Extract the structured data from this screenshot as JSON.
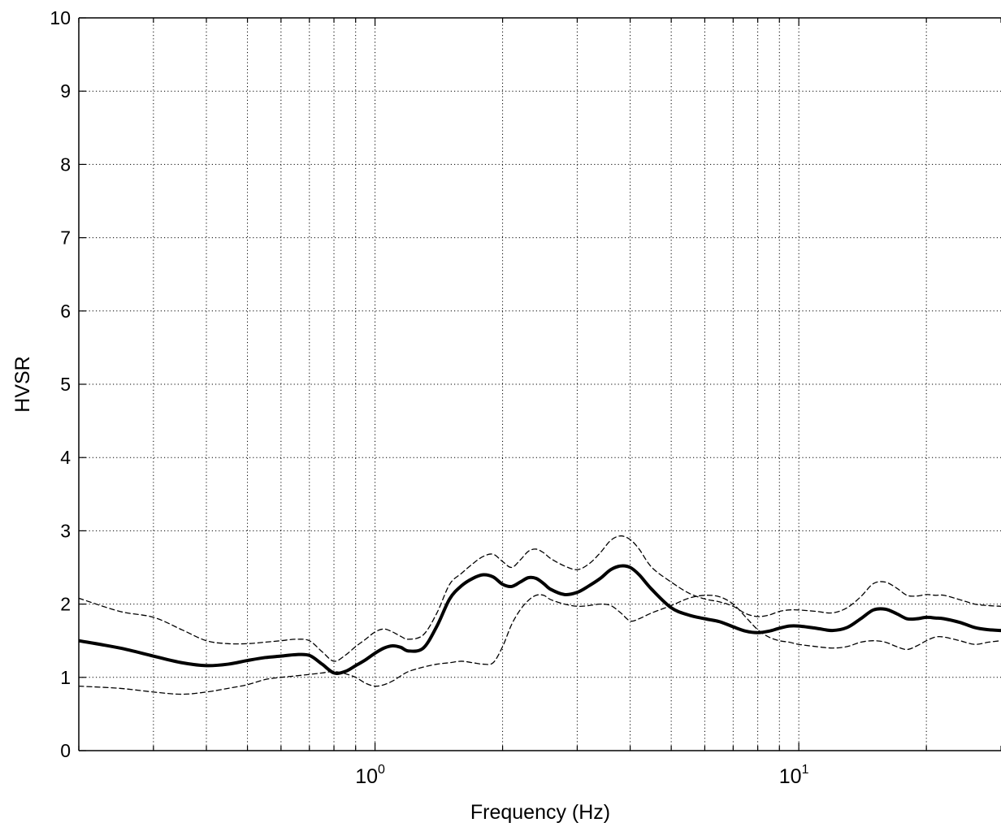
{
  "chart_data": {
    "type": "line",
    "xscale": "log",
    "grid": true,
    "xlim": [
      0.2,
      30
    ],
    "ylim": [
      0,
      10
    ],
    "xlabel": "Frequency (Hz)",
    "ylabel": "HVSR",
    "yticks": [
      "0",
      "1",
      "2",
      "3",
      "4",
      "5",
      "6",
      "7",
      "8",
      "9",
      "10"
    ],
    "xticks": [
      {
        "value": 1,
        "base": "10",
        "exp": "0"
      },
      {
        "value": 10,
        "base": "10",
        "exp": "1"
      }
    ],
    "x": [
      0.2,
      0.25,
      0.3,
      0.35,
      0.4,
      0.45,
      0.5,
      0.55,
      0.6,
      0.65,
      0.7,
      0.75,
      0.8,
      0.85,
      0.9,
      0.95,
      1.0,
      1.05,
      1.1,
      1.15,
      1.2,
      1.3,
      1.4,
      1.5,
      1.6,
      1.7,
      1.8,
      1.9,
      2.0,
      2.1,
      2.2,
      2.3,
      2.4,
      2.5,
      2.6,
      2.8,
      3.0,
      3.2,
      3.4,
      3.6,
      3.8,
      4.0,
      4.2,
      4.5,
      5.0,
      5.5,
      6.0,
      6.5,
      7.0,
      7.5,
      8.0,
      8.5,
      9.0,
      9.5,
      10,
      11,
      12,
      13,
      14,
      15,
      16,
      17,
      18,
      19,
      20,
      21,
      22,
      24,
      26,
      28,
      30
    ],
    "series": [
      {
        "style": "solid-bold",
        "values": [
          1.5,
          1.4,
          1.29,
          1.2,
          1.16,
          1.18,
          1.23,
          1.27,
          1.29,
          1.31,
          1.3,
          1.18,
          1.06,
          1.08,
          1.16,
          1.24,
          1.33,
          1.4,
          1.43,
          1.41,
          1.36,
          1.4,
          1.7,
          2.07,
          2.25,
          2.35,
          2.4,
          2.37,
          2.27,
          2.24,
          2.3,
          2.36,
          2.35,
          2.28,
          2.2,
          2.13,
          2.16,
          2.25,
          2.35,
          2.47,
          2.52,
          2.5,
          2.4,
          2.2,
          1.95,
          1.85,
          1.8,
          1.76,
          1.69,
          1.63,
          1.61,
          1.63,
          1.67,
          1.7,
          1.7,
          1.67,
          1.64,
          1.68,
          1.8,
          1.92,
          1.93,
          1.87,
          1.8,
          1.8,
          1.82,
          1.81,
          1.8,
          1.75,
          1.68,
          1.65,
          1.64
        ]
      },
      {
        "style": "dashed-upper",
        "values": [
          2.08,
          1.9,
          1.82,
          1.65,
          1.5,
          1.46,
          1.46,
          1.48,
          1.5,
          1.52,
          1.5,
          1.35,
          1.22,
          1.3,
          1.42,
          1.52,
          1.62,
          1.66,
          1.62,
          1.56,
          1.52,
          1.58,
          1.88,
          2.27,
          2.42,
          2.55,
          2.65,
          2.68,
          2.58,
          2.5,
          2.6,
          2.72,
          2.75,
          2.7,
          2.62,
          2.52,
          2.47,
          2.55,
          2.7,
          2.87,
          2.93,
          2.88,
          2.75,
          2.5,
          2.3,
          2.15,
          2.07,
          2.03,
          1.97,
          1.87,
          1.83,
          1.85,
          1.9,
          1.92,
          1.92,
          1.9,
          1.88,
          1.95,
          2.1,
          2.28,
          2.3,
          2.22,
          2.12,
          2.11,
          2.13,
          2.12,
          2.12,
          2.06,
          2.0,
          1.98,
          1.97
        ]
      },
      {
        "style": "dashed-lower",
        "values": [
          0.88,
          0.85,
          0.8,
          0.77,
          0.8,
          0.85,
          0.9,
          0.97,
          1.0,
          1.02,
          1.04,
          1.06,
          1.08,
          1.05,
          1.0,
          0.92,
          0.88,
          0.9,
          0.95,
          1.02,
          1.08,
          1.14,
          1.18,
          1.2,
          1.22,
          1.2,
          1.18,
          1.2,
          1.42,
          1.72,
          1.92,
          2.05,
          2.12,
          2.12,
          2.06,
          2.0,
          1.97,
          1.98,
          2.0,
          1.98,
          1.88,
          1.77,
          1.8,
          1.88,
          1.98,
          2.08,
          2.12,
          2.1,
          2.0,
          1.82,
          1.65,
          1.55,
          1.5,
          1.48,
          1.45,
          1.42,
          1.4,
          1.42,
          1.48,
          1.5,
          1.48,
          1.42,
          1.38,
          1.43,
          1.5,
          1.55,
          1.55,
          1.5,
          1.45,
          1.48,
          1.5
        ]
      }
    ]
  }
}
